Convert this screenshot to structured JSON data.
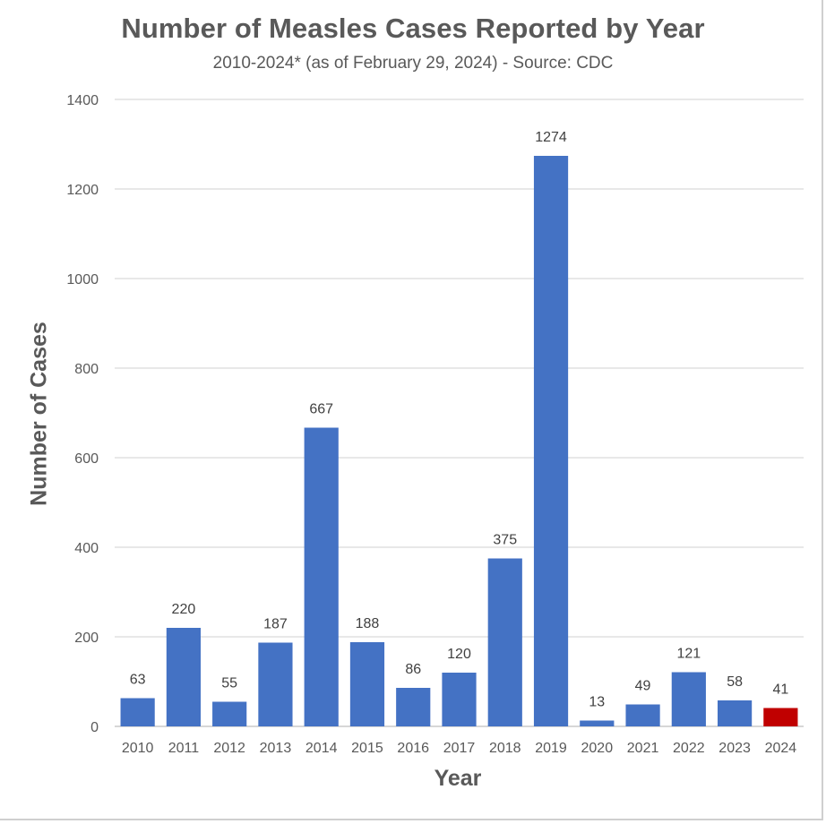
{
  "chart_data": {
    "type": "bar",
    "title": "Number of Measles Cases Reported by Year",
    "subtitle": "2010-2024* (as of February 29, 2024) - Source: CDC",
    "xlabel": "Year",
    "ylabel": "Number of Cases",
    "categories": [
      "2010",
      "2011",
      "2012",
      "2013",
      "2014",
      "2015",
      "2016",
      "2017",
      "2018",
      "2019",
      "2020",
      "2021",
      "2022",
      "2023",
      "2024"
    ],
    "values": [
      63,
      220,
      55,
      187,
      667,
      188,
      86,
      120,
      375,
      1274,
      13,
      49,
      121,
      58,
      41
    ],
    "data_labels": [
      "63",
      "220",
      "55",
      "187",
      "667",
      "188",
      "86",
      "120",
      "375",
      "1274",
      "13",
      "49",
      "121",
      "58",
      "41"
    ],
    "ylim": [
      0,
      1400
    ],
    "yticks": [
      0,
      200,
      400,
      600,
      800,
      1000,
      1200,
      1400
    ],
    "ytick_labels": [
      "0",
      "200",
      "400",
      "600",
      "800",
      "1000",
      "1200",
      "1400"
    ],
    "grid": true,
    "legend": "none",
    "colors": {
      "default": "#4472C4",
      "highlight": "#C00000"
    },
    "highlight_categories": [
      "2024"
    ]
  }
}
